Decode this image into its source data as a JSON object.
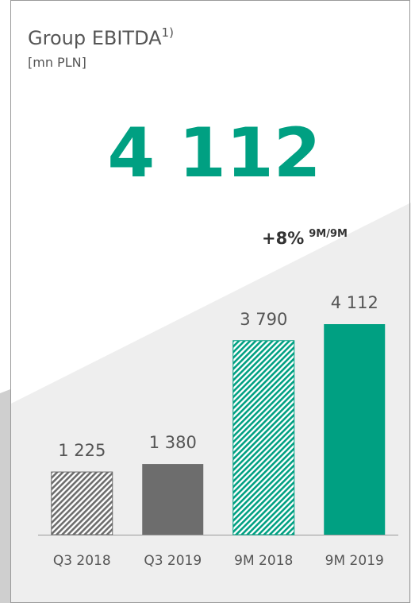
{
  "chart_data": {
    "type": "bar",
    "title": "Group EBITDA",
    "title_note": "1)",
    "subtitle": "[mn PLN]",
    "headline": "4 112",
    "annotation": "+8%",
    "annotation_note": "9M/9M",
    "categories": [
      "Q3 2018",
      "Q3 2019",
      "9M 2018",
      "9M 2019"
    ],
    "values": [
      1225,
      1380,
      3790,
      4112
    ],
    "value_labels": [
      "1 225",
      "1 380",
      "3 790",
      "4 112"
    ],
    "colors": [
      "#6d6d6d",
      "#6d6d6d",
      "#00a082",
      "#00a082"
    ],
    "patterns": [
      "hatch",
      "solid",
      "hatch",
      "solid"
    ]
  }
}
